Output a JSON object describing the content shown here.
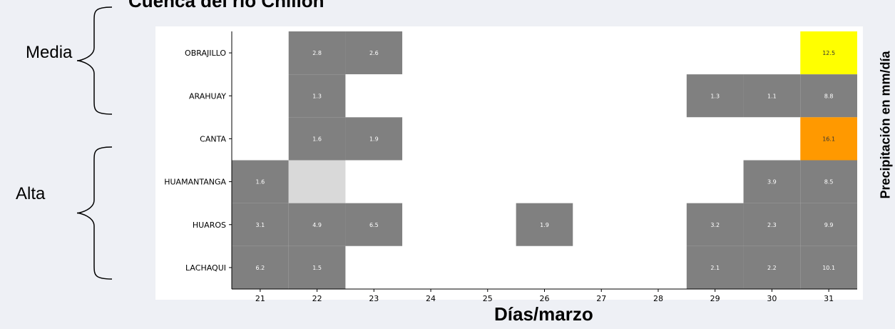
{
  "title": "Cuenca del río Chillón",
  "groups": [
    {
      "label": "Media",
      "stations": [
        "OBRAJILLO",
        "ARAHUAY"
      ]
    },
    {
      "label": "Alta",
      "stations": [
        "HUAMANTANGA",
        "HUAROS",
        "LACHAQUI"
      ]
    }
  ],
  "chart_data": {
    "type": "heatmap",
    "xlabel": "Días/marzo",
    "ylabel": "",
    "colorbar_label": "Precipitación en mm/día",
    "x": [
      "21",
      "22",
      "23",
      "24",
      "25",
      "26",
      "27",
      "28",
      "29",
      "30",
      "31"
    ],
    "y": [
      "OBRAJILLO",
      "ARAHUAY",
      "CANTA",
      "HUAMANTANGA",
      "HUAROS",
      "LACHAQUI"
    ],
    "values": [
      [
        null,
        2.8,
        2.6,
        null,
        null,
        null,
        null,
        null,
        null,
        null,
        12.5
      ],
      [
        null,
        1.3,
        null,
        null,
        null,
        null,
        null,
        null,
        1.3,
        1.1,
        8.8
      ],
      [
        null,
        1.6,
        1.9,
        null,
        null,
        null,
        null,
        null,
        null,
        null,
        16.1
      ],
      [
        1.6,
        "missing",
        null,
        null,
        null,
        null,
        null,
        null,
        null,
        3.9,
        8.5
      ],
      [
        3.1,
        4.9,
        6.5,
        null,
        null,
        1.9,
        null,
        null,
        3.2,
        2.3,
        9.9
      ],
      [
        6.2,
        1.5,
        null,
        null,
        null,
        null,
        null,
        null,
        2.1,
        2.2,
        10.1
      ]
    ],
    "colors": {
      "no_rain": "#ffffff",
      "light": "#808080",
      "no_data": "#d9d9d9",
      "moderate": "#ffff00",
      "heavy": "#ff9900"
    },
    "thresholds": {
      "moderate": 12,
      "heavy": 15
    }
  }
}
